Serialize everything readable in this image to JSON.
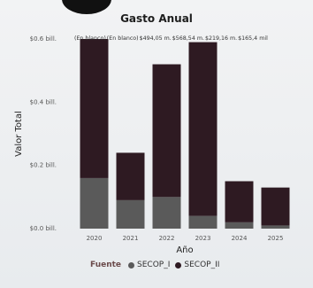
{
  "chart_data": {
    "type": "bar",
    "title": "Gasto Anual",
    "xlabel": "Año",
    "ylabel": "Valor Total",
    "categories": [
      "2020",
      "2021",
      "2022",
      "2023",
      "2024",
      "2025"
    ],
    "series": [
      {
        "name": "SECOP_I",
        "color": "#5a5a5a",
        "values": [
          0.16,
          0.09,
          0.1,
          0.04,
          0.02,
          0.01
        ]
      },
      {
        "name": "SECOP_II",
        "color": "#2e1a22",
        "values": [
          0.44,
          0.15,
          0.42,
          0.55,
          0.13,
          0.12
        ]
      }
    ],
    "yticks": [
      "$0.0 bill.",
      "$0.2 bill.",
      "$0.4 bill.",
      "$0.6 bill."
    ],
    "ytick_values": [
      0,
      0.2,
      0.4,
      0.6
    ],
    "ylim": [
      0,
      0.6
    ],
    "grid": false,
    "annotations": [
      "(En blanco)",
      "(En blanco)",
      "$494,05 m.",
      "$568,54 m.",
      "$219,16 m.",
      "$165,4 mil"
    ],
    "legend": {
      "title": "Fuente",
      "position": "bottom"
    }
  }
}
